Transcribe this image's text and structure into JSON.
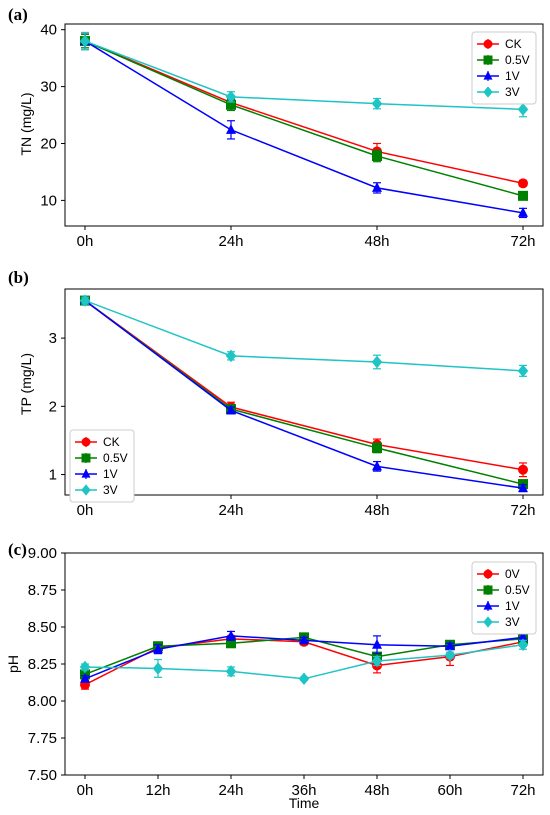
{
  "colors": {
    "red": "#ff0000",
    "green": "#008000",
    "blue": "#0000ff",
    "cyan": "#1fc4c4",
    "axis": "#000000"
  },
  "chart_data": [
    {
      "panel": "(a)",
      "type": "line",
      "ylabel": "TN (mg/L)",
      "xlabel": "",
      "categories": [
        "0h",
        "24h",
        "48h",
        "72h"
      ],
      "ylim": [
        5.5,
        41
      ],
      "yticks": [
        10,
        20,
        30,
        40
      ],
      "legend_position": "top-right",
      "series": [
        {
          "name": "CK",
          "color": "red",
          "marker": "circle",
          "values": [
            38,
            27.2,
            18.6,
            13.0
          ],
          "errors": [
            1.2,
            1.0,
            1.4,
            0.5
          ]
        },
        {
          "name": "0.5V",
          "color": "green",
          "marker": "square",
          "values": [
            38,
            26.8,
            17.8,
            10.8
          ],
          "errors": [
            1.2,
            1.0,
            1.0,
            0.5
          ]
        },
        {
          "name": "1V",
          "color": "blue",
          "marker": "triangle",
          "values": [
            38,
            22.4,
            12.2,
            7.8
          ],
          "errors": [
            1.5,
            1.6,
            0.9,
            0.8
          ]
        },
        {
          "name": "3V",
          "color": "cyan",
          "marker": "diamond",
          "values": [
            38,
            28.2,
            27.0,
            26.0
          ],
          "errors": [
            1.5,
            0.9,
            0.9,
            1.3
          ]
        }
      ]
    },
    {
      "panel": "(b)",
      "type": "line",
      "ylabel": "TP (mg/L)",
      "xlabel": "",
      "categories": [
        "0h",
        "24h",
        "48h",
        "72h"
      ],
      "ylim": [
        0.7,
        3.72
      ],
      "yticks": [
        1,
        2,
        3
      ],
      "legend_position": "bottom-left",
      "series": [
        {
          "name": "CK",
          "color": "red",
          "marker": "circle",
          "values": [
            3.55,
            1.99,
            1.44,
            1.07
          ],
          "errors": [
            0.05,
            0.07,
            0.08,
            0.1
          ]
        },
        {
          "name": "0.5V",
          "color": "green",
          "marker": "square",
          "values": [
            3.55,
            1.96,
            1.39,
            0.86
          ],
          "errors": [
            0.05,
            0.05,
            0.07,
            0.06
          ]
        },
        {
          "name": "1V",
          "color": "blue",
          "marker": "triangle",
          "values": [
            3.55,
            1.94,
            1.12,
            0.8
          ],
          "errors": [
            0.05,
            0.05,
            0.07,
            0.05
          ]
        },
        {
          "name": "3V",
          "color": "cyan",
          "marker": "diamond",
          "values": [
            3.55,
            2.74,
            2.65,
            2.52
          ],
          "errors": [
            0.05,
            0.06,
            0.1,
            0.08
          ]
        }
      ]
    },
    {
      "panel": "(c)",
      "type": "line",
      "ylabel": "pH",
      "xlabel": "Time",
      "categories": [
        "0h",
        "12h",
        "24h",
        "36h",
        "48h",
        "60h",
        "72h"
      ],
      "ylim": [
        7.5,
        9.0
      ],
      "yticks": [
        7.5,
        7.75,
        8.0,
        8.25,
        8.5,
        8.75,
        9.0
      ],
      "ytick_labels": [
        "7.50",
        "7.75",
        "8.00",
        "8.25",
        "8.50",
        "8.75",
        "9.00"
      ],
      "legend_position": "top-right",
      "series": [
        {
          "name": "0V",
          "color": "red",
          "marker": "circle",
          "values": [
            8.11,
            8.36,
            8.42,
            8.4,
            8.24,
            8.3,
            8.4
          ],
          "errors": [
            0.03,
            0.03,
            0.02,
            0.02,
            0.05,
            0.06,
            0.03
          ]
        },
        {
          "name": "0.5V",
          "color": "green",
          "marker": "square",
          "values": [
            8.18,
            8.37,
            8.39,
            8.43,
            8.3,
            8.38,
            8.42
          ],
          "errors": [
            0.02,
            0.02,
            0.02,
            0.02,
            0.02,
            0.02,
            0.02
          ]
        },
        {
          "name": "1V",
          "color": "blue",
          "marker": "triangle",
          "values": [
            8.15,
            8.35,
            8.44,
            8.41,
            8.38,
            8.37,
            8.43
          ],
          "errors": [
            0.02,
            0.03,
            0.03,
            0.02,
            0.06,
            0.02,
            0.02
          ]
        },
        {
          "name": "3V",
          "color": "cyan",
          "marker": "diamond",
          "values": [
            8.23,
            8.22,
            8.2,
            8.15,
            8.27,
            8.31,
            8.38
          ],
          "errors": [
            0.02,
            0.06,
            0.03,
            0.01,
            0.03,
            0.02,
            0.03
          ]
        }
      ]
    }
  ]
}
